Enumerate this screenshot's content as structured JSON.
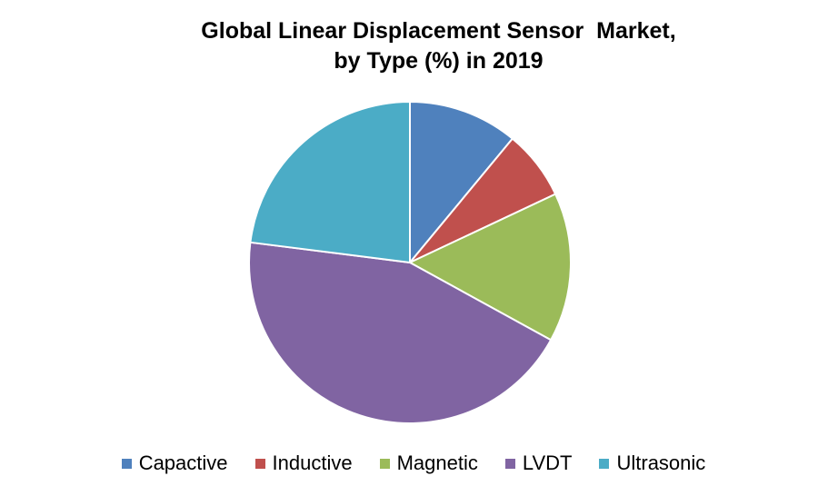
{
  "chart_data": {
    "type": "pie",
    "title_line1": "Global Linear Displacement Sensor  Market,",
    "title_line2": "by Type (%) in 2019",
    "slices": [
      {
        "label": "Capactive",
        "value": 11,
        "color": "#4F81BD"
      },
      {
        "label": "Inductive",
        "value": 7,
        "color": "#C0504D"
      },
      {
        "label": "Magnetic",
        "value": 15,
        "color": "#9BBB59"
      },
      {
        "label": "LVDT",
        "value": 44,
        "color": "#8064A2"
      },
      {
        "label": "Ultrasonic",
        "value": 23,
        "color": "#4BACC6"
      }
    ],
    "legend_position": "bottom"
  }
}
